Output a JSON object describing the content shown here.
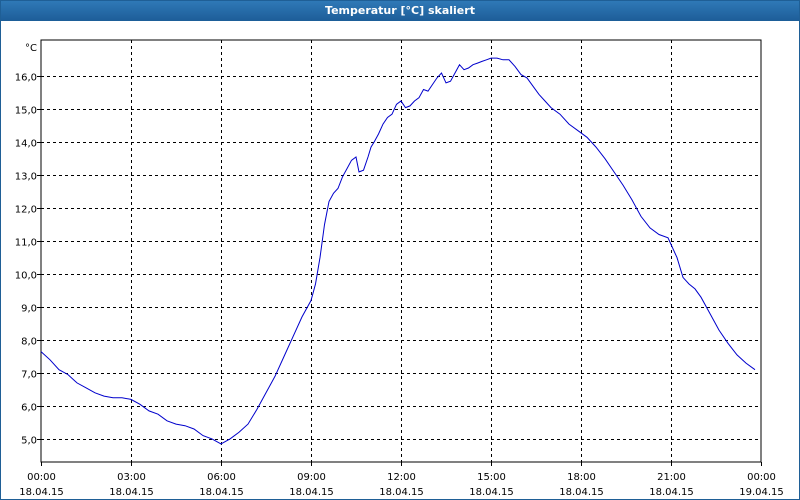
{
  "window": {
    "title": "Temperatur [°C] skaliert"
  },
  "chart_data": {
    "type": "line",
    "title": "Temperatur [°C] skaliert",
    "ylabel": "°C",
    "ylim": [
      4.3,
      17.1
    ],
    "y_ticks": [
      "5,0",
      "6,0",
      "7,0",
      "8,0",
      "9,0",
      "10,0",
      "11,0",
      "12,0",
      "13,0",
      "14,0",
      "15,0",
      "16,0"
    ],
    "y_tick_values": [
      5,
      6,
      7,
      8,
      9,
      10,
      11,
      12,
      13,
      14,
      15,
      16
    ],
    "xlim": [
      0,
      24
    ],
    "x_tick_values": [
      0,
      3,
      6,
      9,
      12,
      15,
      18,
      21,
      24
    ],
    "x_tick_times": [
      "00:00",
      "03:00",
      "06:00",
      "09:00",
      "12:00",
      "15:00",
      "18:00",
      "21:00",
      "00:00"
    ],
    "x_tick_dates": [
      "18.04.15",
      "18.04.15",
      "18.04.15",
      "18.04.15",
      "18.04.15",
      "18.04.15",
      "18.04.15",
      "18.04.15",
      "19.04.15"
    ],
    "grid": true,
    "series": [
      {
        "color": "#0000cc",
        "x": [
          0,
          0.3,
          0.6,
          0.9,
          1.2,
          1.5,
          1.8,
          2.1,
          2.4,
          2.7,
          3.0,
          3.3,
          3.6,
          3.9,
          4.2,
          4.5,
          4.8,
          5.1,
          5.4,
          5.7,
          6.0,
          6.3,
          6.6,
          6.9,
          7.2,
          7.5,
          7.8,
          8.1,
          8.4,
          8.7,
          9.0,
          9.15,
          9.3,
          9.45,
          9.6,
          9.75,
          9.9,
          10.05,
          10.2,
          10.35,
          10.5,
          10.6,
          10.75,
          10.9,
          11.0,
          11.1,
          11.25,
          11.4,
          11.55,
          11.7,
          11.85,
          12.0,
          12.15,
          12.3,
          12.45,
          12.6,
          12.75,
          12.9,
          13.05,
          13.2,
          13.35,
          13.5,
          13.65,
          13.8,
          13.95,
          14.1,
          14.25,
          14.4,
          14.55,
          14.7,
          14.85,
          15.0,
          15.2,
          15.4,
          15.6,
          15.8,
          16.0,
          16.2,
          16.4,
          16.6,
          16.8,
          17.0,
          17.3,
          17.6,
          17.9,
          18.2,
          18.5,
          18.8,
          19.1,
          19.4,
          19.7,
          20.0,
          20.3,
          20.6,
          20.9,
          21.2,
          21.4,
          21.6,
          21.8,
          22.0,
          22.3,
          22.6,
          22.9,
          23.2,
          23.5,
          23.8
        ],
        "y": [
          7.65,
          7.4,
          7.1,
          6.95,
          6.7,
          6.55,
          6.4,
          6.3,
          6.25,
          6.25,
          6.2,
          6.05,
          5.85,
          5.75,
          5.55,
          5.45,
          5.4,
          5.3,
          5.1,
          5.0,
          4.85,
          5.0,
          5.2,
          5.45,
          5.9,
          6.4,
          6.9,
          7.5,
          8.1,
          8.7,
          9.2,
          9.7,
          10.5,
          11.5,
          12.2,
          12.45,
          12.6,
          12.95,
          13.2,
          13.45,
          13.55,
          13.1,
          13.15,
          13.55,
          13.85,
          14.0,
          14.25,
          14.55,
          14.75,
          14.85,
          15.15,
          15.25,
          15.05,
          15.1,
          15.25,
          15.35,
          15.6,
          15.55,
          15.75,
          15.95,
          16.1,
          15.8,
          15.85,
          16.1,
          16.35,
          16.2,
          16.25,
          16.35,
          16.4,
          16.45,
          16.5,
          16.55,
          16.55,
          16.5,
          16.5,
          16.3,
          16.05,
          15.95,
          15.7,
          15.45,
          15.25,
          15.05,
          14.85,
          14.55,
          14.35,
          14.15,
          13.85,
          13.5,
          13.1,
          12.7,
          12.25,
          11.75,
          11.4,
          11.2,
          11.1,
          10.5,
          9.9,
          9.7,
          9.55,
          9.3,
          8.8,
          8.3,
          7.9,
          7.55,
          7.3,
          7.1
        ]
      }
    ]
  }
}
